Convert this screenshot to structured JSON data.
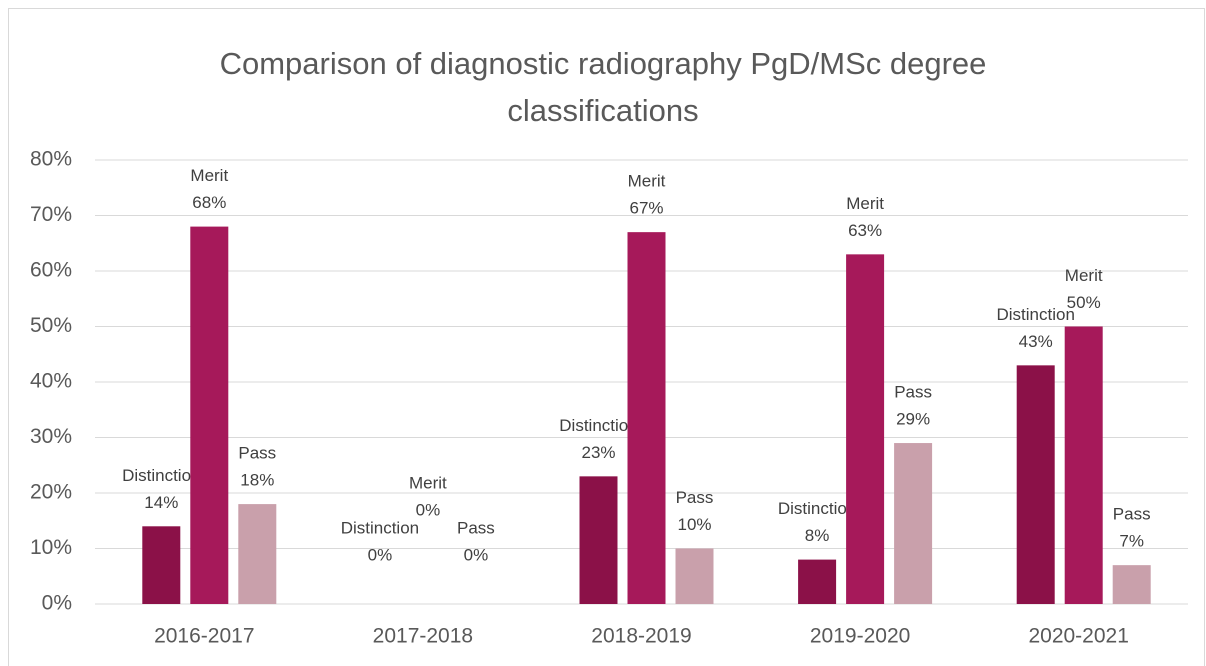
{
  "chart_data": {
    "type": "bar",
    "title": "Comparison of diagnostic radiography PgD/MSc degree classifications",
    "categories": [
      "2016-2017",
      "2017-2018",
      "2018-2019",
      "2019-2020",
      "2020-2021"
    ],
    "series": [
      {
        "name": "Distinction",
        "color": "#8b1148",
        "values": [
          14,
          0,
          23,
          8,
          43
        ],
        "value_labels": [
          "14%",
          "0%",
          "23%",
          "8%",
          "43%"
        ]
      },
      {
        "name": "Merit",
        "color": "#a6195a",
        "values": [
          68,
          0,
          67,
          63,
          50
        ],
        "value_labels": [
          "68%",
          "0%",
          "67%",
          "63%",
          "50%"
        ]
      },
      {
        "name": "Pass",
        "color": "#c9a0ab",
        "values": [
          18,
          0,
          10,
          29,
          7
        ],
        "value_labels": [
          "18%",
          "0%",
          "10%",
          "29%",
          "7%"
        ]
      }
    ],
    "ylim": [
      0,
      80
    ],
    "yticks": [
      {
        "value": 0,
        "label": "0%"
      },
      {
        "value": 10,
        "label": "10%"
      },
      {
        "value": 20,
        "label": "20%"
      },
      {
        "value": 30,
        "label": "30%"
      },
      {
        "value": 40,
        "label": "40%"
      },
      {
        "value": 50,
        "label": "50%"
      },
      {
        "value": 60,
        "label": "60%"
      },
      {
        "value": 70,
        "label": "70%"
      },
      {
        "value": 80,
        "label": "80%"
      }
    ],
    "grid": true
  }
}
